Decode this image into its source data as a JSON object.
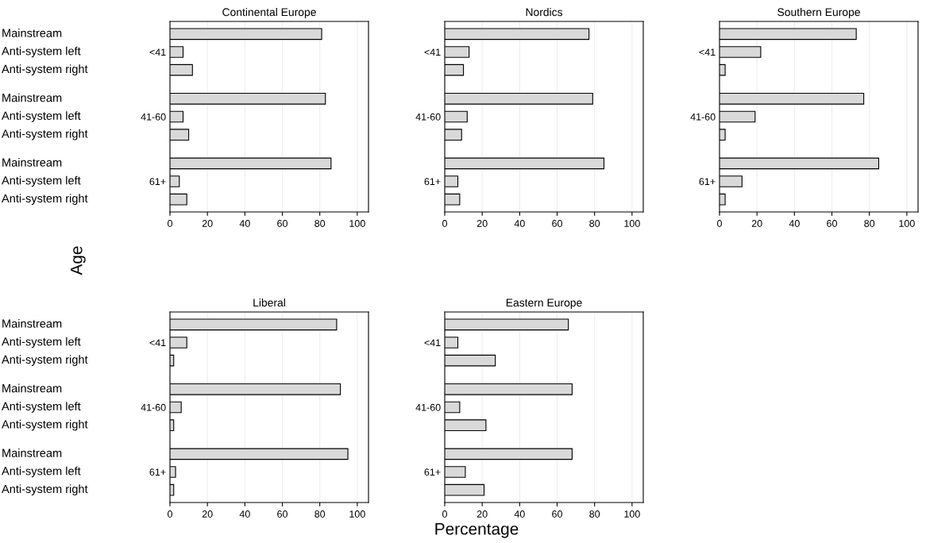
{
  "chart_data": [
    {
      "type": "bar",
      "orientation": "horizontal",
      "title": "Continental Europe",
      "ylabel": "Age",
      "categories": [
        null,
        "<41",
        null,
        null,
        "41-60",
        null,
        null,
        "61+",
        null
      ],
      "annotations": [
        "Mainstream",
        "Anti-system left",
        "Anti-system right",
        "Mainstream",
        "Anti-system left",
        "Anti-system right",
        "Mainstream",
        "Anti-system left",
        "Anti-system right"
      ],
      "values": [
        81,
        7,
        12,
        83,
        7,
        10,
        86,
        5,
        9
      ],
      "color": "#d9d9d9",
      "xlim": [
        0,
        106
      ],
      "xticks": [
        0,
        20,
        40,
        60,
        80,
        100
      ],
      "grid": "x"
    },
    {
      "type": "bar",
      "orientation": "horizontal",
      "title": "Nordics",
      "categories": [
        null,
        "<41",
        null,
        null,
        "41-60",
        null,
        null,
        "61+",
        null
      ],
      "values": [
        77,
        13,
        10,
        79,
        12,
        9,
        85,
        7,
        8
      ],
      "color": "#d9d9d9",
      "xlim": [
        0,
        106
      ],
      "xticks": [
        0,
        20,
        40,
        60,
        80,
        100
      ],
      "grid": "x"
    },
    {
      "type": "bar",
      "orientation": "horizontal",
      "title": "Southern Europe",
      "categories": [
        null,
        "<41",
        null,
        null,
        "41-60",
        null,
        null,
        "61+",
        null
      ],
      "values": [
        73,
        22,
        3,
        77,
        19,
        3,
        85,
        12,
        3
      ],
      "color": "#d9d9d9",
      "xlim": [
        0,
        106
      ],
      "xticks": [
        0,
        20,
        40,
        60,
        80,
        100
      ],
      "grid": "x"
    },
    {
      "type": "bar",
      "orientation": "horizontal",
      "title": "Liberal",
      "categories": [
        null,
        "<41",
        null,
        null,
        "41-60",
        null,
        null,
        "61+",
        null
      ],
      "annotations": [
        "Mainstream",
        "Anti-system left",
        "Anti-system right",
        "Mainstream",
        "Anti-system left",
        "Anti-system right",
        "Mainstream",
        "Anti-system left",
        "Anti-system right"
      ],
      "values": [
        89,
        9,
        2,
        91,
        6,
        2,
        95,
        3,
        2
      ],
      "color": "#d9d9d9",
      "xlim": [
        0,
        106
      ],
      "xticks": [
        0,
        20,
        40,
        60,
        80,
        100
      ],
      "grid": "x"
    },
    {
      "type": "bar",
      "orientation": "horizontal",
      "title": "Eastern Europe",
      "xlabel": "Percentage",
      "categories": [
        null,
        "<41",
        null,
        null,
        "41-60",
        null,
        null,
        "61+",
        null
      ],
      "values": [
        66,
        7,
        27,
        68,
        8,
        22,
        68,
        11,
        21
      ],
      "color": "#d9d9d9",
      "xlim": [
        0,
        106
      ],
      "xticks": [
        0,
        20,
        40,
        60,
        80,
        100
      ],
      "grid": "x"
    }
  ]
}
